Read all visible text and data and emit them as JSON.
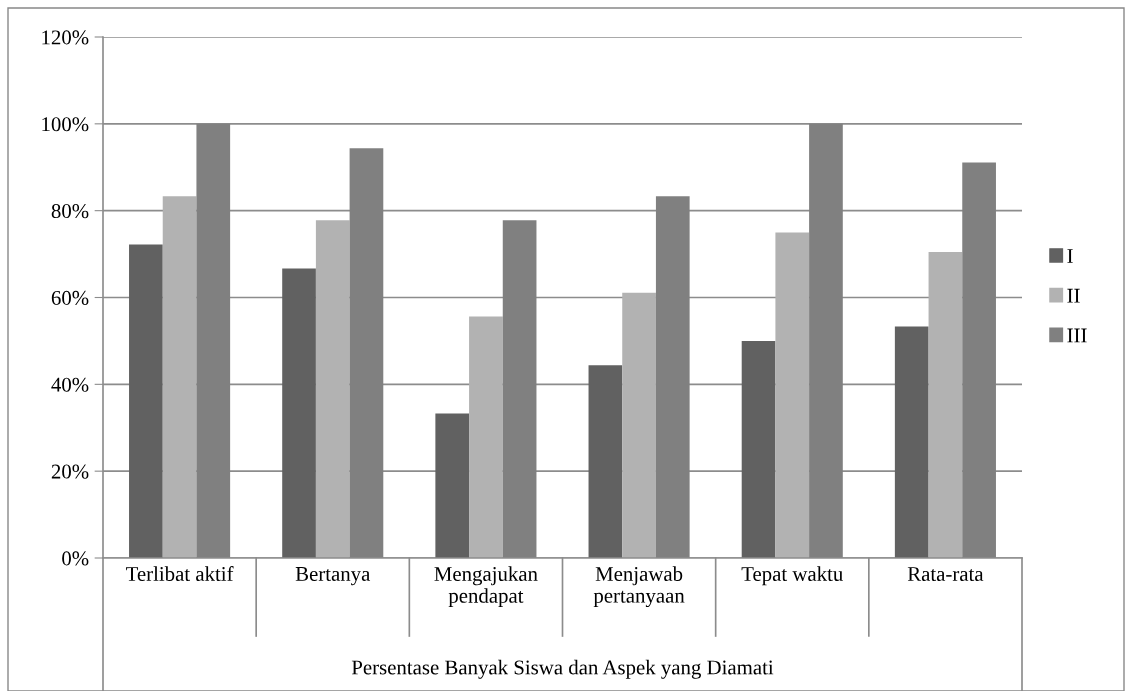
{
  "chart_data": {
    "type": "bar",
    "categories": [
      "Terlibat aktif",
      "Bertanya",
      "Mengajukan pendapat",
      "Menjawab pertanyaan",
      "Tepat waktu",
      "Rata-rata"
    ],
    "series": [
      {
        "name": "I",
        "color": "#616161",
        "values": [
          72.2,
          66.7,
          33.3,
          44.4,
          50,
          53.3
        ]
      },
      {
        "name": "II",
        "color": "#b2b2b2",
        "values": [
          83.3,
          77.8,
          55.6,
          61.1,
          75,
          70.5
        ]
      },
      {
        "name": "III",
        "color": "#808080",
        "values": [
          100,
          94.4,
          77.8,
          83.3,
          100,
          91.1
        ]
      }
    ],
    "xlabel": "Persentase Banyak Siswa dan Aspek yang Diamati",
    "ylim": [
      0,
      120
    ],
    "yticks": [
      {
        "value": 0,
        "label": "0%"
      },
      {
        "value": 20,
        "label": "20%"
      },
      {
        "value": 40,
        "label": "40%"
      },
      {
        "value": 60,
        "label": "60%"
      },
      {
        "value": 80,
        "label": "80%"
      },
      {
        "value": 100,
        "label": "100%"
      },
      {
        "value": 120,
        "label": "120%"
      }
    ],
    "grid": "y",
    "legend": "right"
  }
}
